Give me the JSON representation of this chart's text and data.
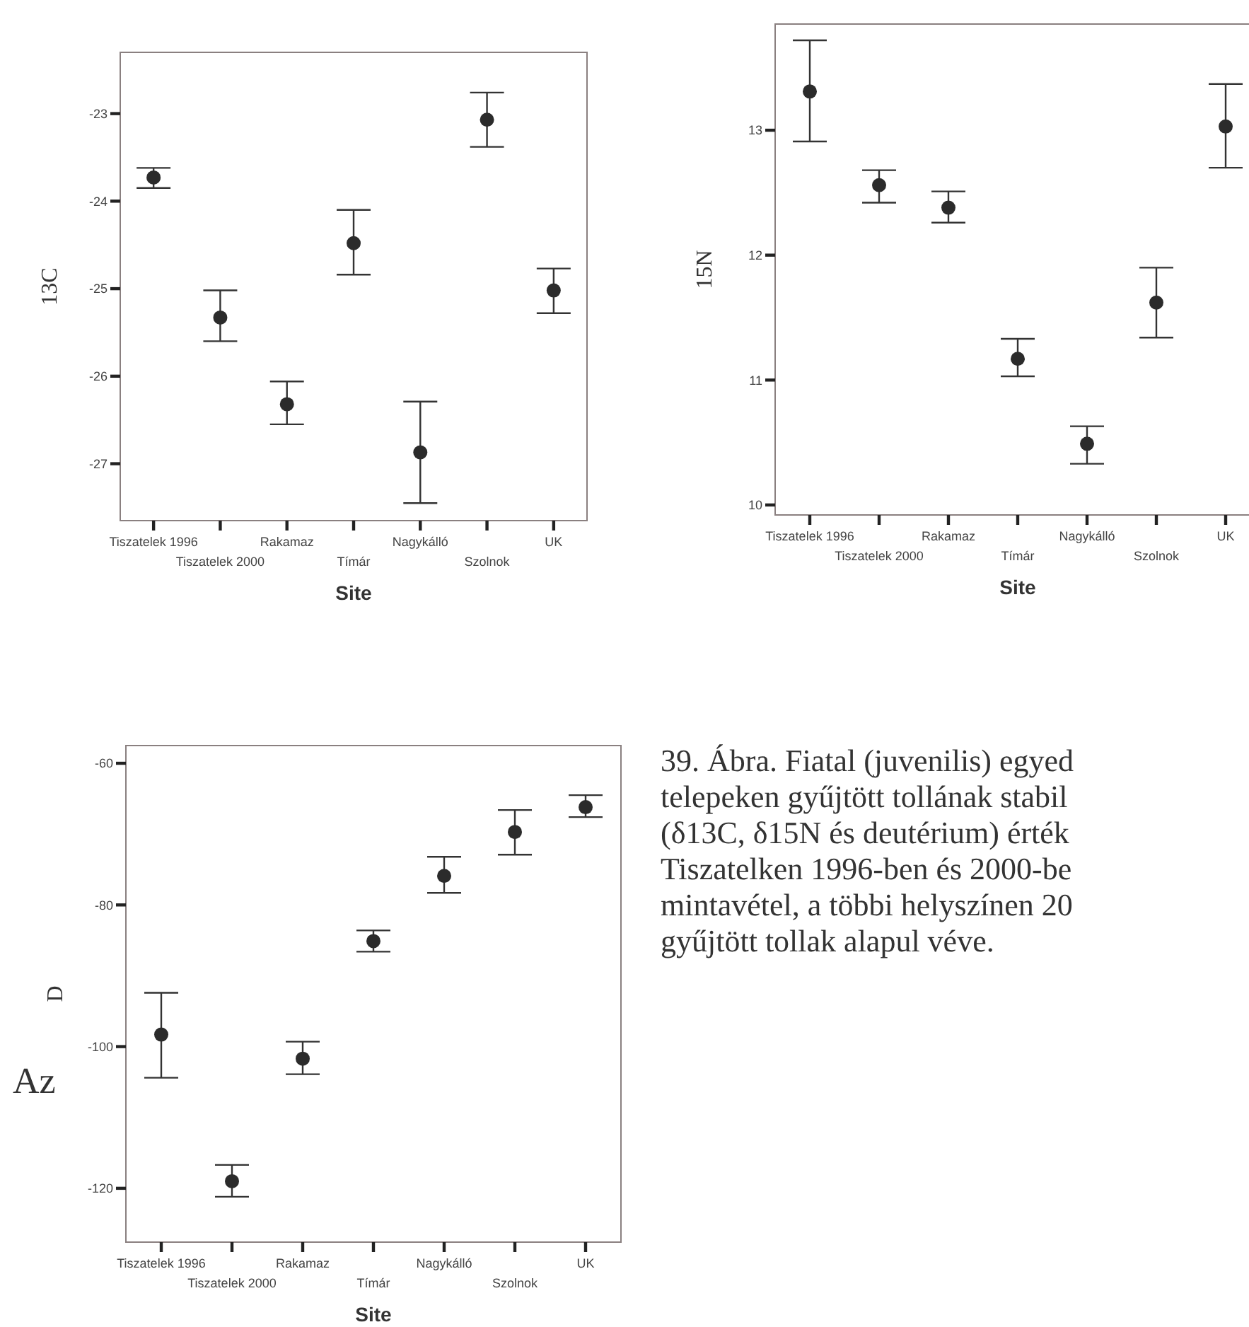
{
  "chart_data": [
    {
      "type": "scatter",
      "ylabel": "13C",
      "xlabel": "Site",
      "categories": [
        "Tiszatelek 1996",
        "Tiszatelek 2000",
        "Rakamaz",
        "Tímár",
        "Nagykálló",
        "Szolnok",
        "UK"
      ],
      "ylim": [
        -27.65,
        -22.3
      ],
      "yticks": [
        -27,
        -26,
        -25,
        -24,
        -23
      ],
      "grid": false,
      "marker": "circle",
      "series": [
        {
          "color": "#2b2b2b",
          "values": [
            -23.73,
            -25.33,
            -26.32,
            -24.48,
            -26.87,
            -23.07,
            -25.02
          ],
          "errors": [
            [
              -23.85,
              -23.62
            ],
            [
              -25.6,
              -25.02
            ],
            [
              -26.55,
              -26.06
            ],
            [
              -24.84,
              -24.1
            ],
            [
              -27.45,
              -26.29
            ],
            [
              -23.38,
              -22.76
            ],
            [
              -25.28,
              -24.77
            ]
          ]
        }
      ]
    },
    {
      "type": "scatter",
      "ylabel": "15N",
      "xlabel": "Site",
      "categories": [
        "Tiszatelek 1996",
        "Tiszatelek 2000",
        "Rakamaz",
        "Tímár",
        "Nagykálló",
        "Szolnok",
        "UK"
      ],
      "ylim": [
        9.92,
        13.85
      ],
      "yticks": [
        10,
        11,
        12,
        13
      ],
      "grid": false,
      "marker": "circle",
      "series": [
        {
          "color": "#2b2b2b",
          "values": [
            13.31,
            12.56,
            12.38,
            11.17,
            10.49,
            11.62,
            13.03
          ],
          "errors": [
            [
              12.91,
              13.72
            ],
            [
              12.42,
              12.68
            ],
            [
              12.26,
              12.51
            ],
            [
              11.03,
              11.33
            ],
            [
              10.33,
              10.63
            ],
            [
              11.34,
              11.9
            ],
            [
              12.7,
              13.37
            ]
          ]
        }
      ]
    },
    {
      "type": "scatter",
      "ylabel": "D",
      "xlabel": "Site",
      "categories": [
        "Tiszatelek 1996",
        "Tiszatelek 2000",
        "Rakamaz",
        "Tímár",
        "Nagykálló",
        "Szolnok",
        "UK"
      ],
      "ylim": [
        -127.6,
        -57.5
      ],
      "yticks": [
        -120,
        -100,
        -80,
        -60
      ],
      "grid": false,
      "marker": "circle",
      "annotations": [
        "Az"
      ],
      "series": [
        {
          "color": "#2b2b2b",
          "values": [
            -98.3,
            -119.0,
            -101.7,
            -85.1,
            -75.9,
            -69.7,
            -66.2
          ],
          "errors": [
            [
              -104.4,
              -92.4
            ],
            [
              -121.2,
              -116.7
            ],
            [
              -103.9,
              -99.3
            ],
            [
              -86.6,
              -83.6
            ],
            [
              -78.3,
              -73.2
            ],
            [
              -72.9,
              -66.6
            ],
            [
              -67.6,
              -64.5
            ]
          ]
        }
      ]
    },
    {
      "type": "other",
      "annotations": [
        "39. Ábra. Fiatal (juvenilis) egyed",
        "telepeken gyűjtött tollának stabil",
        "(δ13C, δ15N és deutérium) érték",
        "Tiszatelken 1996-ben és 2000-be",
        "mintavétel, a többi helyszínen 20",
        "gyűjtött tollak alapul véve."
      ]
    }
  ]
}
